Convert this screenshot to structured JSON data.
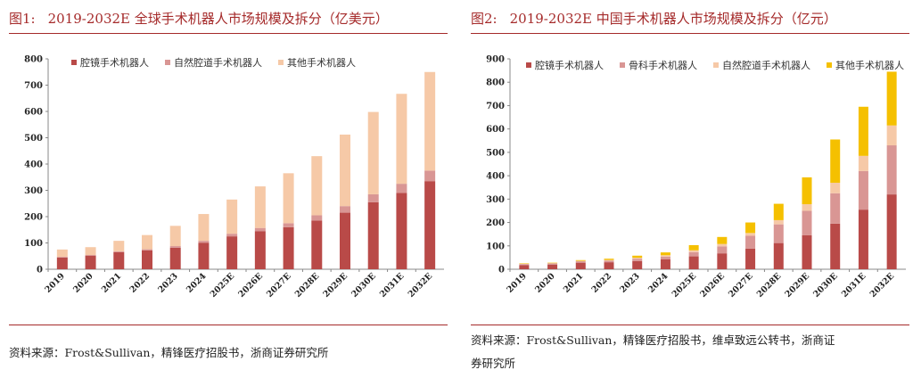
{
  "left": {
    "title_num": "图1:",
    "title_text": "2019-2032E 全球手术机器人市场规模及拆分（亿美元）",
    "source": "资料来源：Frost&Sullivan，精锋医疗招股书，浙商证券研究所"
  },
  "right": {
    "title_num": "图2:",
    "title_text": "2019-2032E 中国手术机器人市场规模及拆分（亿元）",
    "source_line1": "资料来源：Frost&Sullivan，精锋医疗招股书，维卓致远公转书，浙商证",
    "source_line2": "券研究所"
  },
  "chart_data": [
    {
      "type": "bar",
      "stacked": true,
      "categories": [
        "2019",
        "2020",
        "2021",
        "2022",
        "2023",
        "2024",
        "2025E",
        "2026E",
        "2027E",
        "2028E",
        "2029E",
        "2030E",
        "2031E",
        "2032E"
      ],
      "series": [
        {
          "name": "腔镜手术机器人",
          "color": "#b94a48",
          "values": [
            45,
            52,
            65,
            72,
            82,
            100,
            125,
            145,
            160,
            185,
            215,
            255,
            290,
            335
          ]
        },
        {
          "name": "自然腔道手术机器人",
          "color": "#d99694",
          "values": [
            2,
            2,
            3,
            4,
            6,
            8,
            10,
            12,
            15,
            20,
            25,
            30,
            35,
            40
          ]
        },
        {
          "name": "其他手术机器人",
          "color": "#f6c9a7",
          "values": [
            28,
            30,
            40,
            54,
            77,
            102,
            130,
            158,
            190,
            225,
            272,
            313,
            342,
            375
          ]
        }
      ],
      "ylim": [
        0,
        800
      ],
      "yticks": [
        0,
        100,
        200,
        300,
        400,
        500,
        600,
        700,
        800
      ],
      "legend_position": "top"
    },
    {
      "type": "bar",
      "stacked": true,
      "categories": [
        "2019",
        "2020",
        "2021",
        "2022",
        "2023",
        "2024",
        "2025E",
        "2026E",
        "2027E",
        "2028E",
        "2029E",
        "2030E",
        "2031E",
        "2032E"
      ],
      "series": [
        {
          "name": "腔镜手术机器人",
          "color": "#b94a48",
          "values": [
            18,
            20,
            28,
            30,
            35,
            42,
            55,
            68,
            88,
            112,
            145,
            195,
            255,
            320
          ]
        },
        {
          "name": "骨科手术机器人",
          "color": "#d99694",
          "values": [
            4,
            5,
            6,
            7,
            10,
            12,
            18,
            30,
            55,
            80,
            105,
            130,
            165,
            210
          ]
        },
        {
          "name": "自然腔道手术机器人",
          "color": "#f6c9a7",
          "values": [
            1,
            1,
            2,
            3,
            4,
            6,
            8,
            10,
            12,
            18,
            28,
            45,
            65,
            85
          ]
        },
        {
          "name": "其他手术机器人",
          "color": "#f5c000",
          "values": [
            2,
            2,
            3,
            5,
            9,
            12,
            22,
            30,
            45,
            70,
            115,
            185,
            210,
            230
          ]
        }
      ],
      "ylim": [
        0,
        900
      ],
      "yticks": [
        0,
        100,
        200,
        300,
        400,
        500,
        600,
        700,
        800,
        900
      ],
      "legend_position": "top"
    }
  ]
}
